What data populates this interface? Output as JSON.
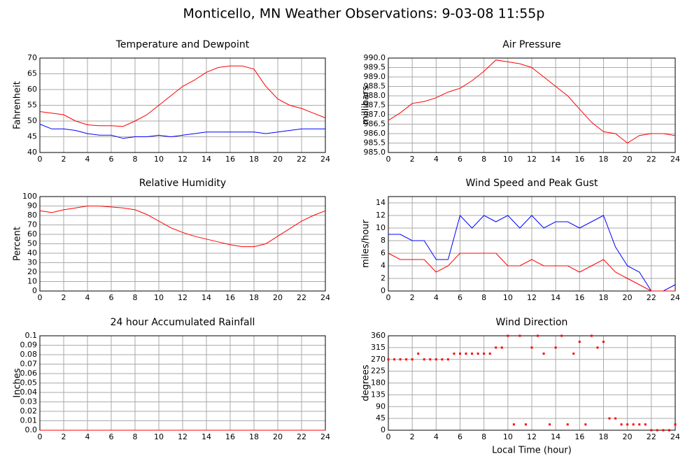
{
  "title": "Monticello, MN Weather Observations: 9-03-08 11:55p",
  "chart_data": [
    {
      "type": "line",
      "title": "Temperature and Dewpoint",
      "ylabel": "Fahrenheit",
      "x": [
        0,
        1,
        2,
        3,
        4,
        5,
        6,
        7,
        8,
        9,
        10,
        11,
        12,
        13,
        14,
        15,
        16,
        17,
        18,
        19,
        20,
        21,
        22,
        23,
        24
      ],
      "series": [
        {
          "color": "#ff0000",
          "values": [
            53,
            52.5,
            52,
            50,
            48.8,
            48.5,
            48.5,
            48.3,
            50,
            52,
            55,
            58,
            61,
            63,
            65.5,
            67,
            67.5,
            67.5,
            66.5,
            61,
            57,
            55,
            54,
            52.5,
            51
          ]
        },
        {
          "color": "#0000ff",
          "values": [
            49,
            47.5,
            47.5,
            47,
            46,
            45.5,
            45.5,
            44.5,
            45,
            45,
            45.5,
            45,
            45.5,
            46,
            46.5,
            46.5,
            46.5,
            46.5,
            46.5,
            46,
            46.5,
            47,
            47.5,
            47.5,
            47.5
          ]
        }
      ],
      "xlim": [
        0,
        24
      ],
      "xticks": [
        0,
        2,
        4,
        6,
        8,
        10,
        12,
        14,
        16,
        18,
        20,
        22,
        24
      ],
      "ylim": [
        40,
        70
      ],
      "yticks": [
        40,
        45,
        50,
        55,
        60,
        65,
        70
      ],
      "grid": true
    },
    {
      "type": "line",
      "title": "Air Pressure",
      "ylabel": "millibars",
      "x": [
        0,
        1,
        2,
        3,
        4,
        5,
        6,
        7,
        8,
        9,
        10,
        11,
        12,
        13,
        14,
        15,
        16,
        17,
        18,
        19,
        20,
        21,
        22,
        23,
        24
      ],
      "series": [
        {
          "color": "#ff0000",
          "values": [
            986.7,
            987.1,
            987.6,
            987.7,
            987.9,
            988.2,
            988.4,
            988.8,
            989.3,
            989.9,
            989.8,
            989.7,
            989.5,
            989.0,
            988.5,
            988.0,
            987.3,
            986.6,
            986.1,
            986.0,
            985.5,
            985.9,
            986.0,
            986.0,
            985.9
          ]
        }
      ],
      "xlim": [
        0,
        24
      ],
      "xticks": [
        0,
        2,
        4,
        6,
        8,
        10,
        12,
        14,
        16,
        18,
        20,
        22,
        24
      ],
      "ylim": [
        985,
        990
      ],
      "yticks": [
        {
          "value": 985,
          "label": "985.0"
        },
        {
          "value": 985.5,
          "label": "985.5"
        },
        {
          "value": 986,
          "label": "986.0"
        },
        {
          "value": 986.5,
          "label": "986.5"
        },
        {
          "value": 987,
          "label": "987.0"
        },
        {
          "value": 987.5,
          "label": "987.5"
        },
        {
          "value": 988,
          "label": "988.0"
        },
        {
          "value": 988.5,
          "label": "988.5"
        },
        {
          "value": 989,
          "label": "989.0"
        },
        {
          "value": 989.5,
          "label": "989.5"
        },
        {
          "value": 990,
          "label": "990.0"
        }
      ],
      "grid": true
    },
    {
      "type": "line",
      "title": "Relative Humidity",
      "ylabel": "Percent",
      "x": [
        0,
        1,
        2,
        3,
        4,
        5,
        6,
        7,
        8,
        9,
        10,
        11,
        12,
        13,
        14,
        15,
        16,
        17,
        18,
        19,
        20,
        21,
        22,
        23,
        24
      ],
      "series": [
        {
          "color": "#ff0000",
          "values": [
            85,
            83,
            86,
            88,
            90,
            90,
            89,
            88,
            86,
            81,
            74,
            67,
            62,
            58,
            55,
            52,
            49,
            47,
            47,
            50,
            58,
            66,
            74,
            80,
            85
          ]
        }
      ],
      "xlim": [
        0,
        24
      ],
      "xticks": [
        0,
        2,
        4,
        6,
        8,
        10,
        12,
        14,
        16,
        18,
        20,
        22,
        24
      ],
      "ylim": [
        0,
        100
      ],
      "yticks": [
        0,
        10,
        20,
        30,
        40,
        50,
        60,
        70,
        80,
        90,
        100
      ],
      "grid": true
    },
    {
      "type": "line",
      "title": "Wind Speed and Peak Gust",
      "ylabel": "miles/hour",
      "x": [
        0,
        1,
        2,
        3,
        4,
        5,
        6,
        7,
        8,
        9,
        10,
        11,
        12,
        13,
        14,
        15,
        16,
        17,
        18,
        19,
        20,
        21,
        22,
        23,
        24
      ],
      "series": [
        {
          "color": "#0000ff",
          "values": [
            9,
            9,
            8,
            8,
            5,
            5,
            12,
            10,
            12,
            11,
            12,
            10,
            12,
            10,
            11,
            11,
            10,
            11,
            12,
            7,
            4,
            3,
            0,
            0,
            1
          ]
        },
        {
          "color": "#ff0000",
          "values": [
            6,
            5,
            5,
            5,
            3,
            4,
            6,
            6,
            6,
            6,
            4,
            4,
            5,
            4,
            4,
            4,
            3,
            4,
            5,
            3,
            2,
            1,
            0,
            0,
            0
          ]
        }
      ],
      "xlim": [
        0,
        24
      ],
      "xticks": [
        0,
        2,
        4,
        6,
        8,
        10,
        12,
        14,
        16,
        18,
        20,
        22,
        24
      ],
      "ylim": [
        0,
        15
      ],
      "yticks": [
        0,
        2,
        4,
        6,
        8,
        10,
        12,
        14
      ],
      "grid": true
    },
    {
      "type": "line",
      "title": "24 hour Accumulated Rainfall",
      "ylabel": "Inches",
      "x": [
        0,
        1,
        2,
        3,
        4,
        5,
        6,
        7,
        8,
        9,
        10,
        11,
        12,
        13,
        14,
        15,
        16,
        17,
        18,
        19,
        20,
        21,
        22,
        23,
        24
      ],
      "series": [
        {
          "color": "#ff0000",
          "values": [
            0,
            0,
            0,
            0,
            0,
            0,
            0,
            0,
            0,
            0,
            0,
            0,
            0,
            0,
            0,
            0,
            0,
            0,
            0,
            0,
            0,
            0,
            0,
            0,
            0
          ]
        }
      ],
      "xlim": [
        0,
        24
      ],
      "xticks": [
        0,
        2,
        4,
        6,
        8,
        10,
        12,
        14,
        16,
        18,
        20,
        22,
        24
      ],
      "ylim": [
        0,
        0.1
      ],
      "yticks": [
        {
          "value": 0,
          "label": "0.0"
        },
        0.01,
        0.02,
        0.03,
        0.04,
        0.05,
        0.06,
        0.07,
        0.08,
        0.09,
        0.1
      ],
      "grid": true
    },
    {
      "type": "scatter",
      "title": "Wind Direction",
      "ylabel": "degrees",
      "xlabel": "Local Time (hour)",
      "x": [
        0,
        0.5,
        1,
        1.5,
        2,
        2.5,
        3,
        3.5,
        4,
        4.5,
        5,
        5.5,
        6,
        6.5,
        7,
        7.5,
        8,
        8.5,
        9,
        9.5,
        10,
        10.5,
        11,
        11.5,
        12,
        12.5,
        13,
        13.5,
        14,
        14.5,
        15,
        15.5,
        16,
        16.5,
        17,
        17.5,
        18,
        18.5,
        19,
        19.5,
        20,
        20.5,
        21,
        21.5,
        22,
        22.5,
        23,
        23.5,
        24
      ],
      "series": [
        {
          "color": "#ff0000",
          "values": [
            270,
            270,
            270,
            270,
            270,
            292,
            270,
            270,
            270,
            270,
            270,
            292,
            292,
            292,
            292,
            292,
            292,
            292,
            315,
            315,
            360,
            22,
            360,
            22,
            315,
            360,
            292,
            22,
            315,
            360,
            22,
            292,
            337,
            22,
            360,
            315,
            337,
            45,
            45,
            22,
            22,
            22,
            22,
            22,
            0,
            0,
            0,
            0,
            22
          ]
        }
      ],
      "xlim": [
        0,
        24
      ],
      "xticks": [
        0,
        2,
        4,
        6,
        8,
        10,
        12,
        14,
        16,
        18,
        20,
        22,
        24
      ],
      "ylim": [
        0,
        360
      ],
      "yticks": [
        0,
        45,
        90,
        135,
        180,
        225,
        270,
        315,
        360
      ],
      "grid": true
    }
  ]
}
